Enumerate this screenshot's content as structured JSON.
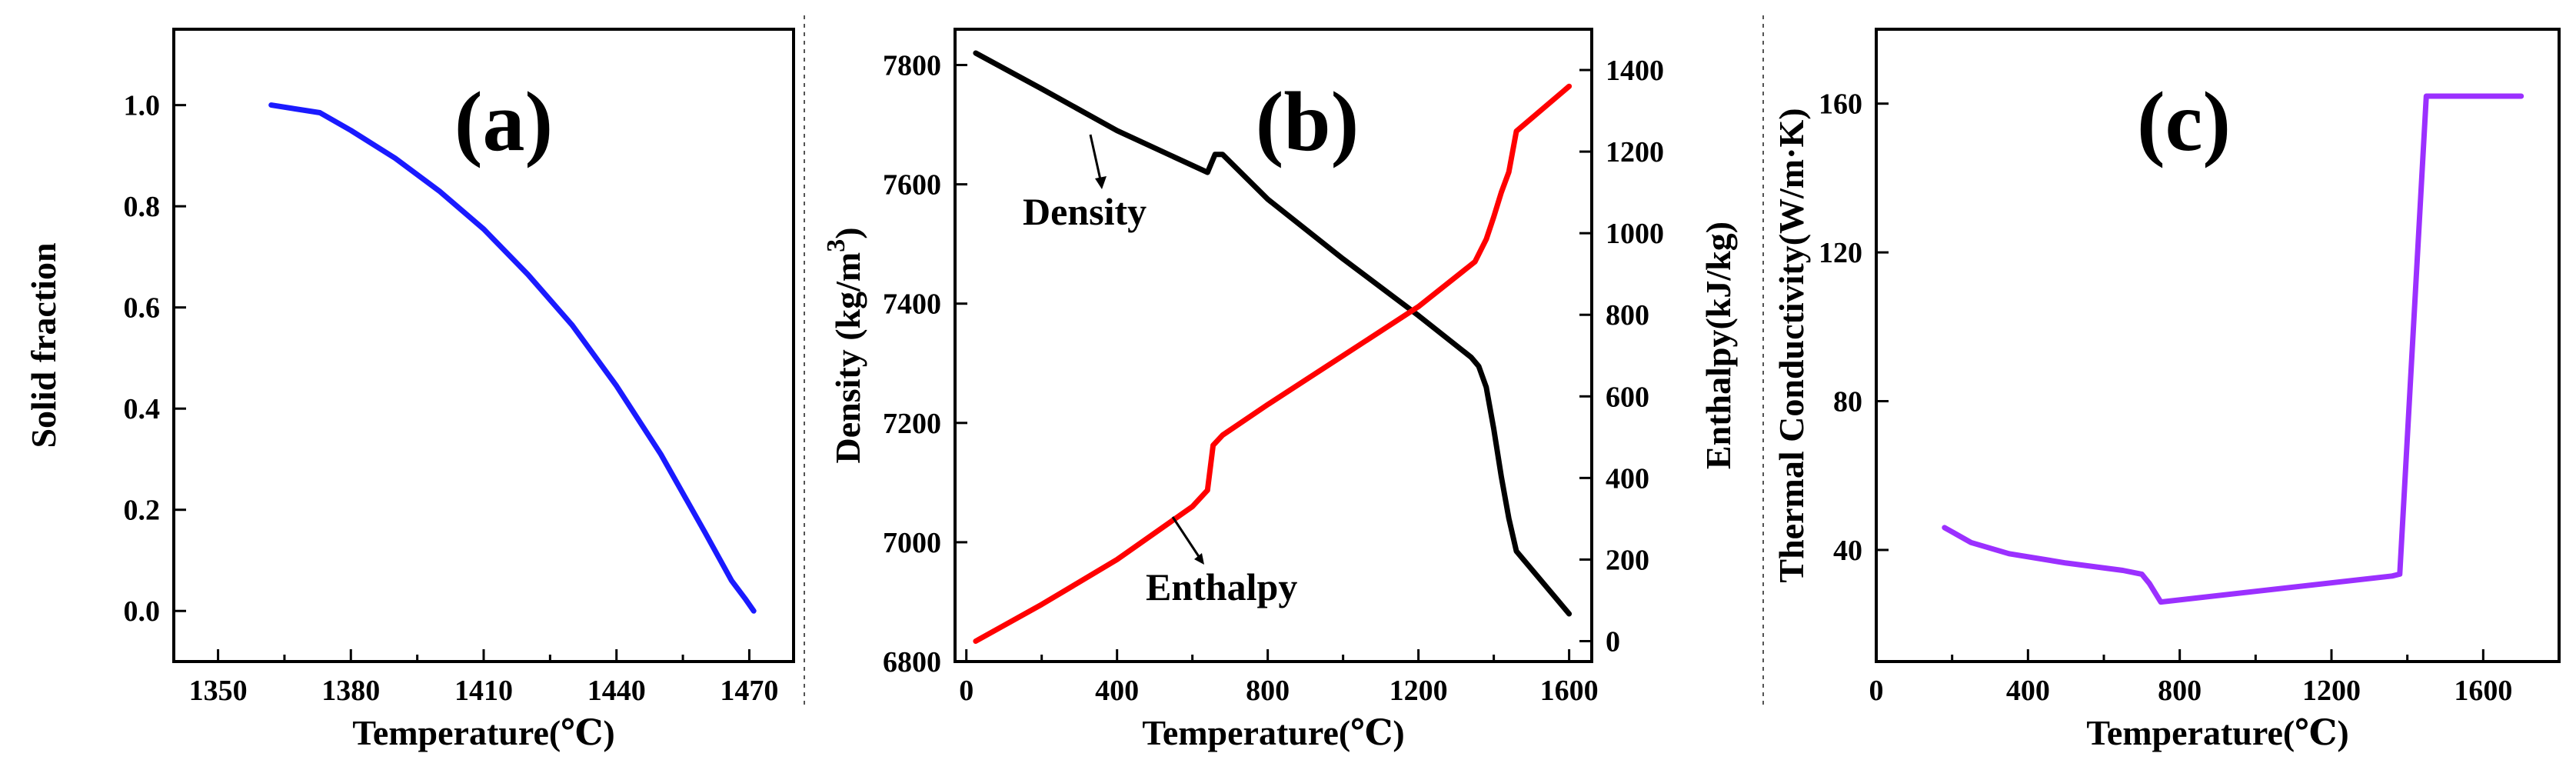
{
  "chart_data": [
    {
      "id": "a",
      "type": "line",
      "panel_label": "(a)",
      "xlabel": "Temperature(℃)",
      "ylabel": "Solid fraction",
      "xlim": [
        1340,
        1480
      ],
      "ylim": [
        -0.1,
        1.15
      ],
      "xticks": [
        1350,
        1380,
        1410,
        1440,
        1470
      ],
      "xtick_labels": [
        "1350",
        "1380",
        "1410",
        "1440",
        "1470"
      ],
      "yticks": [
        0.0,
        0.2,
        0.4,
        0.6,
        0.8,
        1.0
      ],
      "ytick_labels": [
        "0.0",
        "0.2",
        "0.4",
        "0.6",
        "0.8",
        "1.0"
      ],
      "series": [
        {
          "name": "Solid fraction",
          "color": "#1a1aff",
          "axis": "left",
          "x": [
            1362,
            1373,
            1380,
            1390,
            1400,
            1410,
            1420,
            1430,
            1440,
            1450,
            1460,
            1466,
            1469,
            1471
          ],
          "y": [
            1.0,
            0.985,
            0.95,
            0.895,
            0.83,
            0.755,
            0.665,
            0.565,
            0.445,
            0.31,
            0.155,
            0.06,
            0.025,
            0.0
          ]
        }
      ]
    },
    {
      "id": "b",
      "type": "line",
      "panel_label": "(b)",
      "xlabel": "Temperature(℃)",
      "ylabel": "Density (kg/m",
      "ylabel_sup": "3",
      "ylabel_close": ")",
      "y2label": "Enthalpy(kJ/kg)",
      "xlim": [
        -30,
        1660
      ],
      "ylim": [
        6800,
        7860
      ],
      "y2lim": [
        -50,
        1500
      ],
      "xticks": [
        0,
        400,
        800,
        1200,
        1600
      ],
      "xtick_labels": [
        "0",
        "400",
        "800",
        "1200",
        "1600"
      ],
      "yticks": [
        6800,
        7000,
        7200,
        7400,
        7600,
        7800
      ],
      "ytick_labels": [
        "6800",
        "7000",
        "7200",
        "7400",
        "7600",
        "7800"
      ],
      "y2ticks": [
        0,
        200,
        400,
        600,
        800,
        1000,
        1200,
        1400
      ],
      "y2tick_labels": [
        "0",
        "200",
        "400",
        "600",
        "800",
        "1000",
        "1200",
        "1400"
      ],
      "annotations": [
        "Density",
        "Enthalpy"
      ],
      "series": [
        {
          "name": "Density",
          "color": "#000000",
          "axis": "left",
          "x": [
            25,
            200,
            400,
            640,
            660,
            680,
            800,
            1000,
            1200,
            1340,
            1360,
            1380,
            1400,
            1420,
            1440,
            1460,
            1600
          ],
          "y": [
            7820,
            7760,
            7690,
            7620,
            7650,
            7650,
            7575,
            7475,
            7380,
            7310,
            7295,
            7260,
            7190,
            7110,
            7040,
            6985,
            6880
          ]
        },
        {
          "name": "Enthalpy",
          "color": "#ff0000",
          "axis": "right",
          "x": [
            25,
            200,
            400,
            600,
            640,
            655,
            680,
            800,
            1000,
            1200,
            1350,
            1380,
            1400,
            1420,
            1440,
            1460,
            1600
          ],
          "y": [
            0,
            90,
            200,
            330,
            370,
            480,
            505,
            580,
            700,
            820,
            930,
            985,
            1040,
            1100,
            1150,
            1250,
            1360
          ]
        }
      ]
    },
    {
      "id": "c",
      "type": "line",
      "panel_label": "(c)",
      "xlabel": "Temperature(℃)",
      "ylabel": "Thermal Conductivity(W/m·K)",
      "xlim": [
        0,
        1800
      ],
      "ylim": [
        10,
        180
      ],
      "xticks": [
        0,
        400,
        800,
        1200,
        1600
      ],
      "xtick_labels": [
        "0",
        "400",
        "800",
        "1200",
        "1600"
      ],
      "yticks": [
        40,
        80,
        120,
        160
      ],
      "ytick_labels": [
        "40",
        "80",
        "120",
        "160"
      ],
      "series": [
        {
          "name": "Thermal Conductivity",
          "color": "#9b30ff",
          "axis": "left",
          "x": [
            180,
            250,
            350,
            500,
            650,
            700,
            720,
            750,
            1360,
            1380,
            1450,
            1700
          ],
          "y": [
            46,
            42,
            39,
            36.5,
            34.5,
            33.5,
            31,
            26,
            33,
            33.5,
            162,
            162
          ]
        }
      ]
    }
  ]
}
